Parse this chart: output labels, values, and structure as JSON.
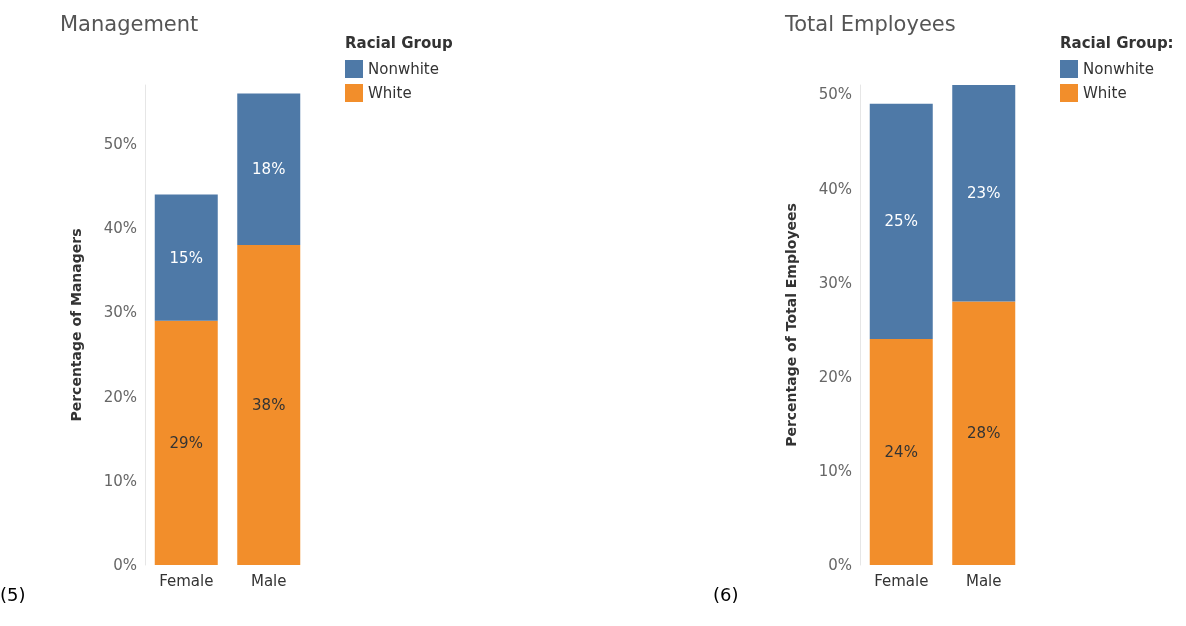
{
  "chart_data": [
    {
      "type": "bar",
      "title": "Management",
      "ylabel": "Percentage of Managers",
      "legend_title": "Racial Group",
      "categories": [
        "Female",
        "Male"
      ],
      "stacked": true,
      "legend": "top right",
      "grid": false,
      "series": [
        {
          "name": "White",
          "color": "#f28e2b",
          "values": [
            29,
            38
          ],
          "value_labels": [
            "29%",
            "38%"
          ]
        },
        {
          "name": "Nonwhite",
          "color": "#4e79a7",
          "values": [
            15,
            18
          ],
          "value_labels": [
            "15%",
            "18%"
          ]
        }
      ],
      "ylim": [
        0,
        57
      ],
      "yticks": [
        {
          "value": 0,
          "label": "0%"
        },
        {
          "value": 10,
          "label": "10%"
        },
        {
          "value": 20,
          "label": "20%"
        },
        {
          "value": 30,
          "label": "30%"
        },
        {
          "value": 40,
          "label": "40%"
        },
        {
          "value": 50,
          "label": "50%"
        }
      ],
      "annotations": [
        "(5)"
      ]
    },
    {
      "type": "bar",
      "title": "Total Employees",
      "ylabel": "Percentage of Total Employees",
      "legend_title": "Racial Group:",
      "categories": [
        "Female",
        "Male"
      ],
      "stacked": true,
      "legend": "top right",
      "grid": false,
      "series": [
        {
          "name": "White",
          "color": "#f28e2b",
          "values": [
            24,
            28
          ],
          "value_labels": [
            "24%",
            "28%"
          ]
        },
        {
          "name": "Nonwhite",
          "color": "#4e79a7",
          "values": [
            25,
            23
          ],
          "value_labels": [
            "25%",
            "23%"
          ]
        }
      ],
      "ylim": [
        0,
        51
      ],
      "yticks": [
        {
          "value": 0,
          "label": "0%"
        },
        {
          "value": 10,
          "label": "10%"
        },
        {
          "value": 20,
          "label": "20%"
        },
        {
          "value": 30,
          "label": "30%"
        },
        {
          "value": 40,
          "label": "40%"
        },
        {
          "value": 50,
          "label": "50%"
        }
      ],
      "annotations": [
        "(6)"
      ]
    }
  ]
}
